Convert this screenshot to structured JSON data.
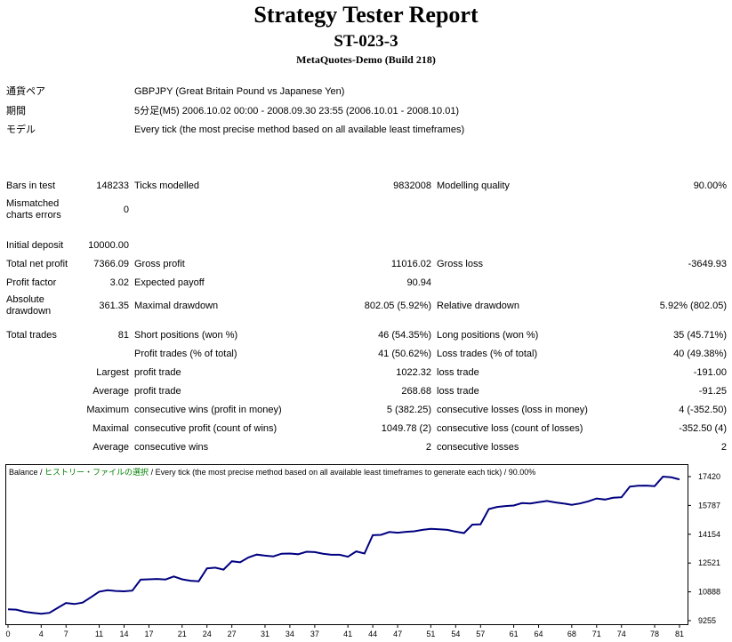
{
  "header": {
    "title": "Strategy Tester Report",
    "ea_name": "ST-023-3",
    "server": "MetaQuotes-Demo (Build 218)"
  },
  "info": [
    {
      "label": "通貨ペア",
      "value": "GBPJPY (Great Britain Pound vs Japanese Yen)"
    },
    {
      "label": "期間",
      "value": "5分足(M5) 2006.10.02 00:00 - 2008.09.30 23:55 (2006.10.01 - 2008.10.01)"
    },
    {
      "label": "モデル",
      "value": "Every tick (the most precise method based on all available least timeframes)"
    }
  ],
  "stats": {
    "bars_label": "Bars in test",
    "bars": "148233",
    "ticks_label": "Ticks modelled",
    "ticks": "9832008",
    "quality_label": "Modelling quality",
    "quality": "90.00%",
    "mismatch_label": "Mismatched charts errors",
    "mismatch": "0",
    "deposit_label": "Initial deposit",
    "deposit": "10000.00",
    "net_label": "Total net profit",
    "net": "7366.09",
    "gross_profit_label": "Gross profit",
    "gross_profit": "11016.02",
    "gross_loss_label": "Gross loss",
    "gross_loss": "-3649.93",
    "pf_label": "Profit factor",
    "pf": "3.02",
    "ep_label": "Expected payoff",
    "ep": "90.94",
    "abs_dd_label": "Absolute drawdown",
    "abs_dd": "361.35",
    "max_dd_label": "Maximal drawdown",
    "max_dd": "802.05 (5.92%)",
    "rel_dd_label": "Relative drawdown",
    "rel_dd": "5.92% (802.05)",
    "trades_label": "Total trades",
    "trades": "81",
    "short_label": "Short positions (won %)",
    "short": "46 (54.35%)",
    "long_label": "Long positions (won %)",
    "long": "35 (45.71%)",
    "pt_label": "Profit trades (% of total)",
    "pt": "41 (50.62%)",
    "lt_label": "Loss trades (% of total)",
    "lt": "40 (49.38%)",
    "largest": "Largest",
    "average": "Average",
    "maximum": "Maximum",
    "maximal": "Maximal",
    "profit_trade_label": "profit trade",
    "loss_trade_label": "loss trade",
    "largest_profit": "1022.32",
    "largest_loss": "-191.00",
    "avg_profit": "268.68",
    "avg_loss": "-91.25",
    "cw_label": "consecutive wins (profit in money)",
    "cw": "5 (382.25)",
    "cl_label": "consecutive losses (loss in money)",
    "cl": "4 (-352.50)",
    "cp_label": "consecutive profit (count of wins)",
    "cp": "1049.78 (2)",
    "closs_label": "consecutive loss (count of losses)",
    "closs": "-352.50 (4)",
    "acw_label": "consecutive wins",
    "acw": "2",
    "acl_label": "consecutive losses",
    "acl": "2"
  },
  "chart_data": {
    "type": "line",
    "legend": {
      "balance": "Balance",
      "sep1": " / ",
      "history": "ヒストリー・ファイルの選択",
      "rest": " / Every tick (the most precise method based on all available least timeframes to generate each tick) / 90.00%"
    },
    "x_ticks": [
      0,
      4,
      7,
      11,
      14,
      17,
      21,
      24,
      27,
      31,
      34,
      37,
      41,
      44,
      47,
      51,
      54,
      57,
      61,
      64,
      68,
      71,
      74,
      78,
      81
    ],
    "y_ticks": [
      17420,
      15787,
      14154,
      12521,
      10888,
      9255
    ],
    "ylim": [
      9255,
      17420
    ],
    "xlim": [
      0,
      81
    ],
    "series": [
      {
        "color": "#000080",
        "points": [
          [
            0,
            9900
          ],
          [
            1,
            9880
          ],
          [
            2,
            9760
          ],
          [
            3,
            9700
          ],
          [
            4,
            9650
          ],
          [
            5,
            9700
          ],
          [
            6,
            9980
          ],
          [
            7,
            10260
          ],
          [
            8,
            10200
          ],
          [
            9,
            10280
          ],
          [
            10,
            10580
          ],
          [
            11,
            10900
          ],
          [
            12,
            10980
          ],
          [
            13,
            10940
          ],
          [
            14,
            10920
          ],
          [
            15,
            10960
          ],
          [
            16,
            11580
          ],
          [
            17,
            11600
          ],
          [
            18,
            11620
          ],
          [
            19,
            11590
          ],
          [
            20,
            11760
          ],
          [
            21,
            11600
          ],
          [
            22,
            11520
          ],
          [
            23,
            11490
          ],
          [
            24,
            12220
          ],
          [
            25,
            12260
          ],
          [
            26,
            12150
          ],
          [
            27,
            12620
          ],
          [
            28,
            12560
          ],
          [
            29,
            12840
          ],
          [
            30,
            13000
          ],
          [
            31,
            12940
          ],
          [
            32,
            12900
          ],
          [
            33,
            13050
          ],
          [
            34,
            13060
          ],
          [
            35,
            13020
          ],
          [
            36,
            13160
          ],
          [
            37,
            13140
          ],
          [
            38,
            13050
          ],
          [
            39,
            12990
          ],
          [
            40,
            12990
          ],
          [
            41,
            12880
          ],
          [
            42,
            13180
          ],
          [
            43,
            13060
          ],
          [
            44,
            14100
          ],
          [
            45,
            14120
          ],
          [
            46,
            14280
          ],
          [
            47,
            14240
          ],
          [
            48,
            14290
          ],
          [
            49,
            14320
          ],
          [
            50,
            14400
          ],
          [
            51,
            14460
          ],
          [
            52,
            14430
          ],
          [
            53,
            14400
          ],
          [
            54,
            14300
          ],
          [
            55,
            14220
          ],
          [
            56,
            14700
          ],
          [
            57,
            14720
          ],
          [
            58,
            15580
          ],
          [
            59,
            15700
          ],
          [
            60,
            15750
          ],
          [
            61,
            15780
          ],
          [
            62,
            15920
          ],
          [
            63,
            15900
          ],
          [
            64,
            15970
          ],
          [
            65,
            16040
          ],
          [
            66,
            15960
          ],
          [
            67,
            15900
          ],
          [
            68,
            15820
          ],
          [
            69,
            15900
          ],
          [
            70,
            16020
          ],
          [
            71,
            16180
          ],
          [
            72,
            16120
          ],
          [
            73,
            16220
          ],
          [
            74,
            16250
          ],
          [
            75,
            16850
          ],
          [
            76,
            16900
          ],
          [
            77,
            16910
          ],
          [
            78,
            16880
          ],
          [
            79,
            17420
          ],
          [
            80,
            17380
          ],
          [
            81,
            17260
          ]
        ]
      }
    ]
  }
}
